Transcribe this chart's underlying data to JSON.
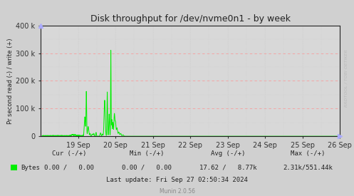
{
  "title": "Disk throughput for /dev/nvme0n1 - by week",
  "ylabel": "Pr second read (-) / write (+)",
  "background_color": "#d0d0d0",
  "plot_bg_color": "#d8d8d8",
  "line_color": "#00ee00",
  "title_color": "#222222",
  "ylim": [
    0,
    400000
  ],
  "yticks": [
    0,
    100000,
    200000,
    300000,
    400000
  ],
  "ytick_labels": [
    "0",
    "100 k",
    "200 k",
    "300 k",
    "400 k"
  ],
  "xtick_labels": [
    "19 Sep",
    "20 Sep",
    "21 Sep",
    "22 Sep",
    "23 Sep",
    "24 Sep",
    "25 Sep",
    "26 Sep"
  ],
  "footer_munin": "Munin 2.0.56",
  "legend_label": "Bytes",
  "watermark": "RRDTOOL / TOBI OETIKER",
  "arrow_color": "#aaaaff",
  "hgrid_major_color": "#ff9999",
  "hgrid_minor_color": "#cccccc",
  "vgrid_major_color": "#cccccc",
  "vgrid_minor_color": "#cccccc"
}
